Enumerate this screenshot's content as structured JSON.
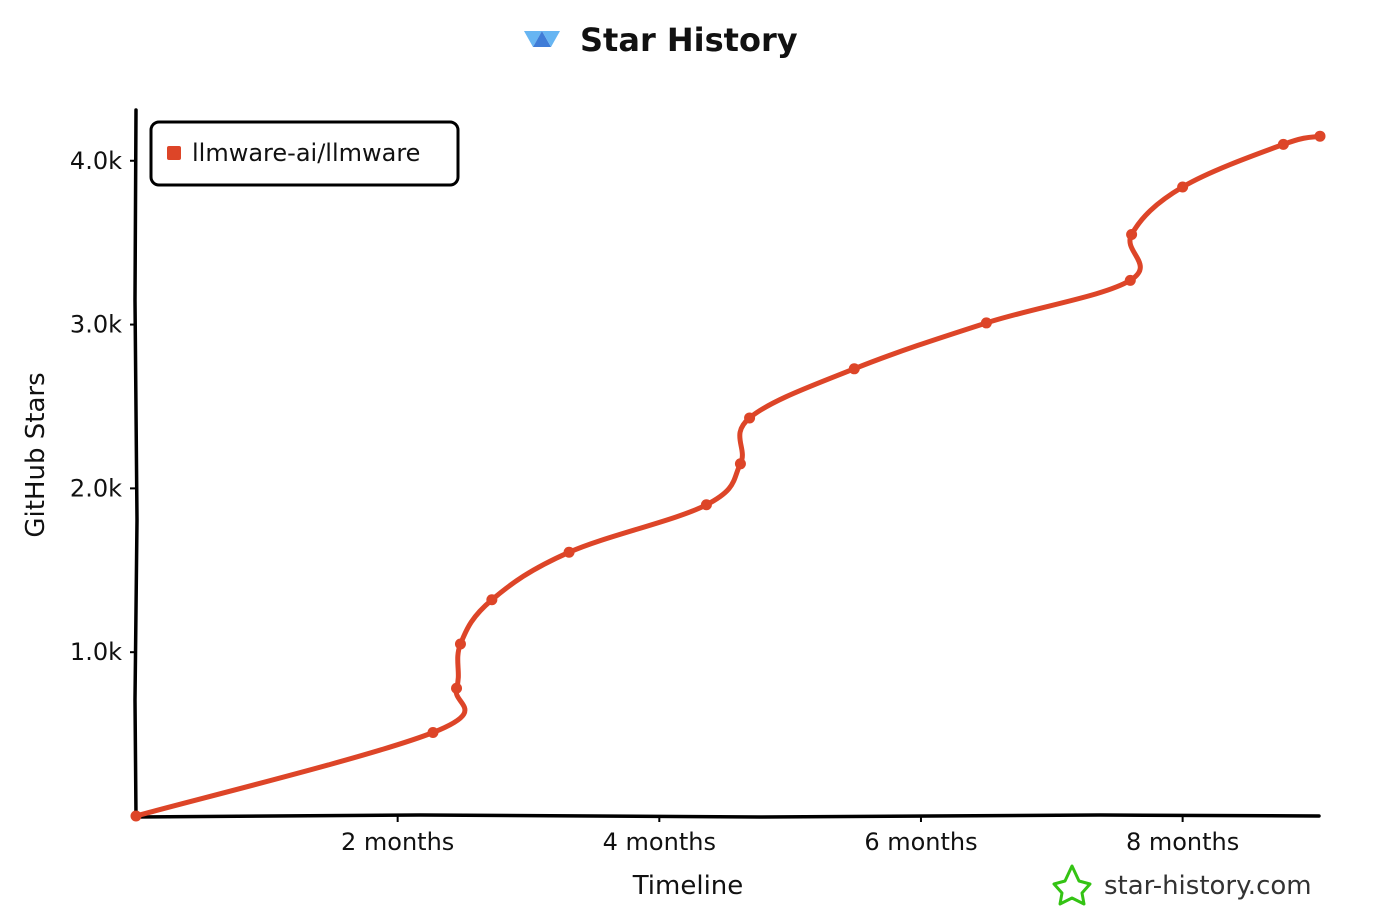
{
  "header": {
    "title": "Star History"
  },
  "watermark": {
    "text": "star-history.com"
  },
  "colors": {
    "series": "#dd4528",
    "axis": "#000000",
    "logo_blue": "#3f7cd7",
    "logo_light": "#67b5f2",
    "watermark_green": "#34c314"
  },
  "icons": {
    "logo": "star-history-logo-icon",
    "watermark": "star-outline-icon"
  },
  "chart_data": {
    "type": "line",
    "title": "Star History",
    "xlabel": "Timeline",
    "ylabel": "GitHub Stars",
    "x_unit": "months",
    "xlim": [
      0,
      9.05
    ],
    "ylim": [
      0,
      4200
    ],
    "x_ticks": [
      {
        "value": 2,
        "label": "2 months"
      },
      {
        "value": 4,
        "label": "4 months"
      },
      {
        "value": 6,
        "label": "6 months"
      },
      {
        "value": 8,
        "label": "8 months"
      }
    ],
    "y_ticks": [
      {
        "value": 1000,
        "label": "1.0k"
      },
      {
        "value": 2000,
        "label": "2.0k"
      },
      {
        "value": 3000,
        "label": "3.0k"
      },
      {
        "value": 4000,
        "label": "4.0k"
      }
    ],
    "legend": {
      "position": "top-left"
    },
    "series": [
      {
        "name": "llmware-ai/llmware",
        "color": "#dd4528",
        "points": [
          {
            "x": 0.0,
            "y": 0
          },
          {
            "x": 2.27,
            "y": 510
          },
          {
            "x": 2.45,
            "y": 780
          },
          {
            "x": 2.48,
            "y": 1050
          },
          {
            "x": 2.72,
            "y": 1320
          },
          {
            "x": 3.31,
            "y": 1610
          },
          {
            "x": 4.36,
            "y": 1900
          },
          {
            "x": 4.62,
            "y": 2150
          },
          {
            "x": 4.69,
            "y": 2430
          },
          {
            "x": 5.49,
            "y": 2730
          },
          {
            "x": 6.5,
            "y": 3010
          },
          {
            "x": 7.6,
            "y": 3270
          },
          {
            "x": 7.61,
            "y": 3550
          },
          {
            "x": 8.0,
            "y": 3840
          },
          {
            "x": 8.77,
            "y": 4100
          },
          {
            "x": 9.05,
            "y": 4150
          }
        ]
      }
    ]
  }
}
